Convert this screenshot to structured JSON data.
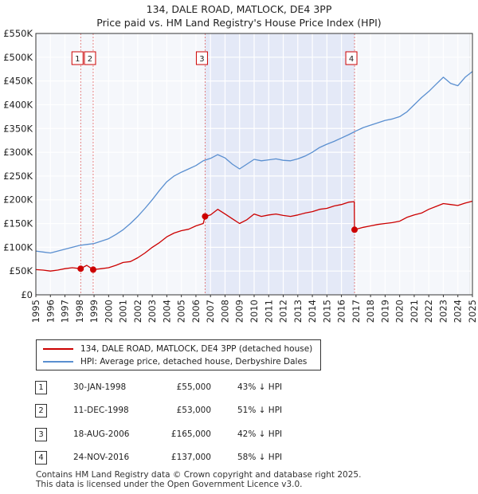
{
  "header": {
    "title": "134, DALE ROAD, MATLOCK, DE4 3PP",
    "subtitle": "Price paid vs. HM Land Registry's House Price Index (HPI)"
  },
  "chart_data": {
    "type": "line",
    "title": "134, DALE ROAD, MATLOCK, DE4 3PP",
    "subtitle": "Price paid vs. HM Land Registry's House Price Index (HPI)",
    "xlabel": "",
    "ylabel": "",
    "xlim": [
      1995,
      2025
    ],
    "ylim": [
      0,
      550000
    ],
    "x_ticks": [
      "1995",
      "1996",
      "1997",
      "1998",
      "1999",
      "2000",
      "2001",
      "2002",
      "2003",
      "2004",
      "2005",
      "2006",
      "2007",
      "2008",
      "2009",
      "2010",
      "2011",
      "2012",
      "2013",
      "2014",
      "2015",
      "2016",
      "2017",
      "2018",
      "2019",
      "2020",
      "2021",
      "2022",
      "2023",
      "2024",
      "2025"
    ],
    "y_ticks": [
      {
        "value": 0,
        "label": "£0"
      },
      {
        "value": 50000,
        "label": "£50K"
      },
      {
        "value": 100000,
        "label": "£100K"
      },
      {
        "value": 150000,
        "label": "£150K"
      },
      {
        "value": 200000,
        "label": "£200K"
      },
      {
        "value": 250000,
        "label": "£250K"
      },
      {
        "value": 300000,
        "label": "£300K"
      },
      {
        "value": 350000,
        "label": "£350K"
      },
      {
        "value": 400000,
        "label": "£400K"
      },
      {
        "value": 450000,
        "label": "£450K"
      },
      {
        "value": 500000,
        "label": "£500K"
      },
      {
        "value": 550000,
        "label": "£550K"
      }
    ],
    "grid": true,
    "shaded_region": [
      2006.63,
      2016.9
    ],
    "series": [
      {
        "name": "134, DALE ROAD, MATLOCK, DE4 3PP (detached house)",
        "color": "#cc0000",
        "x": [
          1995.0,
          1995.5,
          1996.0,
          1996.5,
          1997.0,
          1997.5,
          1998.08,
          1998.5,
          1998.94,
          1999.5,
          2000.0,
          2000.5,
          2001.0,
          2001.5,
          2002.0,
          2002.5,
          2003.0,
          2003.5,
          2004.0,
          2004.5,
          2005.0,
          2005.5,
          2006.0,
          2006.5,
          2006.63,
          2007.0,
          2007.5,
          2008.0,
          2008.5,
          2009.0,
          2009.5,
          2010.0,
          2010.5,
          2011.0,
          2011.5,
          2012.0,
          2012.5,
          2013.0,
          2013.5,
          2014.0,
          2014.5,
          2015.0,
          2015.5,
          2016.0,
          2016.5,
          2016.88,
          2016.9,
          2017.5,
          2018.0,
          2018.5,
          2019.0,
          2019.5,
          2020.0,
          2020.5,
          2021.0,
          2021.5,
          2022.0,
          2022.5,
          2023.0,
          2023.5,
          2024.0,
          2024.5,
          2025.0
        ],
        "values": [
          53000,
          52000,
          50000,
          52000,
          55000,
          57000,
          55000,
          62000,
          53000,
          55000,
          57000,
          62000,
          68000,
          70000,
          78000,
          88000,
          100000,
          110000,
          122000,
          130000,
          135000,
          138000,
          145000,
          150000,
          165000,
          168000,
          180000,
          170000,
          160000,
          150000,
          158000,
          170000,
          165000,
          168000,
          170000,
          167000,
          165000,
          168000,
          172000,
          175000,
          180000,
          182000,
          187000,
          190000,
          195000,
          196000,
          137000,
          142000,
          145000,
          148000,
          150000,
          152000,
          155000,
          163000,
          168000,
          172000,
          180000,
          186000,
          192000,
          190000,
          188000,
          193000,
          197000
        ]
      },
      {
        "name": "HPI: Average price, detached house, Derbyshire Dales",
        "color": "#5a8fd0",
        "x": [
          1995.0,
          1995.5,
          1996.0,
          1996.5,
          1997.0,
          1997.5,
          1998.0,
          1998.5,
          1999.0,
          1999.5,
          2000.0,
          2000.5,
          2001.0,
          2001.5,
          2002.0,
          2002.5,
          2003.0,
          2003.5,
          2004.0,
          2004.5,
          2005.0,
          2005.5,
          2006.0,
          2006.5,
          2007.0,
          2007.5,
          2008.0,
          2008.5,
          2009.0,
          2009.5,
          2010.0,
          2010.5,
          2011.0,
          2011.5,
          2012.0,
          2012.5,
          2013.0,
          2013.5,
          2014.0,
          2014.5,
          2015.0,
          2015.5,
          2016.0,
          2016.5,
          2017.0,
          2017.5,
          2018.0,
          2018.5,
          2019.0,
          2019.5,
          2020.0,
          2020.5,
          2021.0,
          2021.5,
          2022.0,
          2022.5,
          2023.0,
          2023.5,
          2024.0,
          2024.5,
          2025.0
        ],
        "values": [
          92000,
          90000,
          88000,
          92000,
          96000,
          100000,
          104000,
          106000,
          108000,
          113000,
          118000,
          127000,
          137000,
          150000,
          165000,
          182000,
          200000,
          220000,
          238000,
          250000,
          258000,
          265000,
          272000,
          282000,
          287000,
          295000,
          288000,
          275000,
          265000,
          275000,
          285000,
          282000,
          284000,
          286000,
          283000,
          282000,
          286000,
          292000,
          300000,
          310000,
          317000,
          323000,
          330000,
          337000,
          345000,
          352000,
          357000,
          362000,
          367000,
          370000,
          375000,
          385000,
          400000,
          415000,
          428000,
          443000,
          458000,
          445000,
          440000,
          458000,
          470000
        ]
      }
    ],
    "sales": [
      {
        "label": "1",
        "x": 1998.08,
        "value": 55000
      },
      {
        "label": "2",
        "x": 1998.94,
        "value": 53000
      },
      {
        "label": "3",
        "x": 2006.63,
        "value": 165000
      },
      {
        "label": "4",
        "x": 2016.9,
        "value": 137000
      }
    ]
  },
  "legend": {
    "items": [
      {
        "label": "134, DALE ROAD, MATLOCK, DE4 3PP (detached house)",
        "color": "#cc0000"
      },
      {
        "label": "HPI: Average price, detached house, Derbyshire Dales",
        "color": "#5a8fd0"
      }
    ]
  },
  "transactions": [
    {
      "num": "1",
      "date": "30-JAN-1998",
      "price": "£55,000",
      "delta": "43% ↓ HPI"
    },
    {
      "num": "2",
      "date": "11-DEC-1998",
      "price": "£53,000",
      "delta": "51% ↓ HPI"
    },
    {
      "num": "3",
      "date": "18-AUG-2006",
      "price": "£165,000",
      "delta": "42% ↓ HPI"
    },
    {
      "num": "4",
      "date": "24-NOV-2016",
      "price": "£137,000",
      "delta": "58% ↓ HPI"
    }
  ],
  "footer": {
    "line1": "Contains HM Land Registry data © Crown copyright and database right 2025.",
    "line2": "This data is licensed under the Open Government Licence v3.0."
  }
}
